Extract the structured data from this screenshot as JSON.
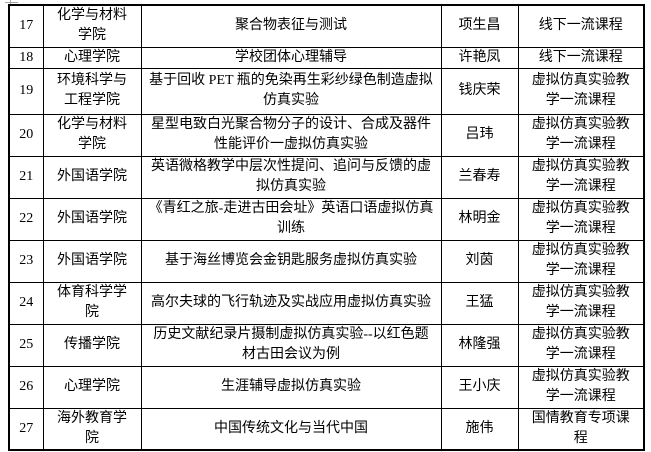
{
  "colors": {
    "background": "#ffffff",
    "border": "#000000",
    "text": "#000000",
    "artifact_gray": "#a6a6a6"
  },
  "table": {
    "fields": [
      "num",
      "college",
      "course",
      "teacher",
      "type"
    ],
    "rows": [
      {
        "num": "17",
        "college": "化学与材料学院",
        "course": "聚合物表征与测试",
        "teacher": "项生昌",
        "type": "线下一流课程"
      },
      {
        "num": "18",
        "college": "心理学院",
        "course": "学校团体心理辅导",
        "teacher": "许艳凤",
        "type": "线下一流课程"
      },
      {
        "num": "19",
        "college": "环境科学与工程学院",
        "course": "基于回收 PET 瓶的免染再生彩纱绿色制造虚拟仿真实验",
        "teacher": "钱庆荣",
        "type": "虚拟仿真实验教学一流课程"
      },
      {
        "num": "20",
        "college": "化学与材料学院",
        "course": "星型电致白光聚合物分子的设计、合成及器件性能评价一虚拟仿真实验",
        "teacher": "吕玮",
        "type": "虚拟仿真实验教学一流课程"
      },
      {
        "num": "21",
        "college": "外国语学院",
        "course": "英语微格教学中层次性提问、追问与反馈的虚拟仿真实验",
        "teacher": "兰春寿",
        "type": "虚拟仿真实验教学一流课程"
      },
      {
        "num": "22",
        "college": "外国语学院",
        "course": "《青红之旅-走进古田会址》英语口语虚拟仿真训练",
        "teacher": "林明金",
        "type": "虚拟仿真实验教学一流课程"
      },
      {
        "num": "23",
        "college": "外国语学院",
        "course": "基于海丝博览会金钥匙服务虚拟仿真实验",
        "teacher": "刘茵",
        "type": "虚拟仿真实验教学一流课程"
      },
      {
        "num": "24",
        "college": "体育科学学院",
        "course": "高尔夫球的飞行轨迹及实战应用虚拟仿真实验",
        "teacher": "王猛",
        "type": "虚拟仿真实验教学一流课程"
      },
      {
        "num": "25",
        "college": "传播学院",
        "course": "历史文献纪录片摄制虚拟仿真实验--以红色题材古田会议为例",
        "teacher": "林隆强",
        "type": "虚拟仿真实验教学一流课程"
      },
      {
        "num": "26",
        "college": "心理学院",
        "course": "生涯辅导虚拟仿真实验",
        "teacher": "王小庆",
        "type": "虚拟仿真实验教学一流课程"
      },
      {
        "num": "27",
        "college": "海外教育学院",
        "course": "中国传统文化与当代中国",
        "teacher": "施伟",
        "type": "国情教育专项课程"
      }
    ]
  }
}
